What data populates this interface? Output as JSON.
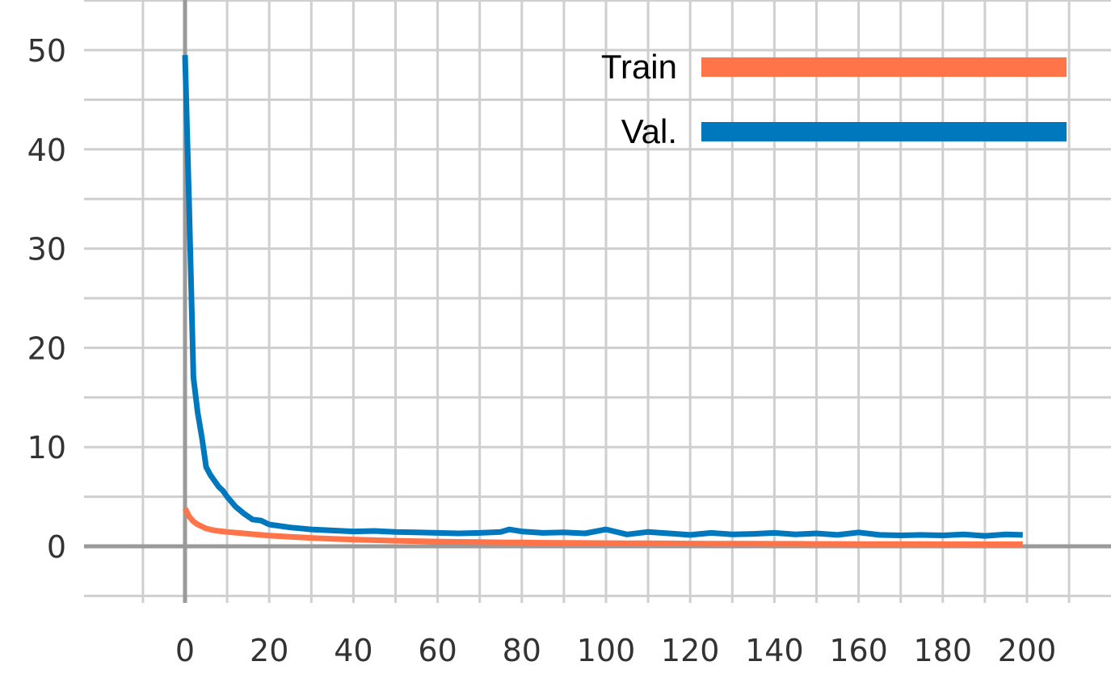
{
  "chart_data": {
    "type": "line",
    "xlim": [
      -20,
      220
    ],
    "ylim": [
      -5,
      55
    ],
    "x_ticks": [
      0,
      20,
      40,
      60,
      80,
      100,
      120,
      140,
      160,
      180,
      200
    ],
    "y_ticks": [
      0,
      10,
      20,
      30,
      40,
      50
    ],
    "x_tick_labels": [
      "0",
      "20",
      "40",
      "60",
      "80",
      "100",
      "120",
      "140",
      "160",
      "180",
      "200"
    ],
    "y_tick_labels": [
      "0",
      "10",
      "20",
      "30",
      "40",
      "50"
    ],
    "grid": true,
    "legend_position": "top-right",
    "x": [
      0,
      1,
      2,
      3,
      4,
      5,
      6,
      7,
      8,
      9,
      10,
      12,
      14,
      16,
      18,
      20,
      25,
      30,
      35,
      40,
      45,
      50,
      55,
      60,
      65,
      70,
      75,
      77,
      80,
      85,
      90,
      95,
      100,
      105,
      110,
      115,
      120,
      125,
      130,
      135,
      140,
      145,
      150,
      155,
      160,
      165,
      170,
      175,
      180,
      185,
      190,
      195,
      199
    ],
    "series": [
      {
        "name": "Train",
        "color": "#FF7448",
        "values": [
          3.8,
          3.0,
          2.5,
          2.2,
          2.0,
          1.8,
          1.7,
          1.6,
          1.55,
          1.5,
          1.45,
          1.38,
          1.3,
          1.22,
          1.15,
          1.08,
          0.95,
          0.85,
          0.76,
          0.68,
          0.62,
          0.56,
          0.52,
          0.48,
          0.45,
          0.42,
          0.4,
          0.39,
          0.38,
          0.36,
          0.34,
          0.33,
          0.32,
          0.31,
          0.3,
          0.29,
          0.28,
          0.27,
          0.26,
          0.26,
          0.25,
          0.25,
          0.24,
          0.24,
          0.23,
          0.23,
          0.22,
          0.22,
          0.21,
          0.21,
          0.2,
          0.2,
          0.2
        ]
      },
      {
        "name": "Val.",
        "color": "#0078BD",
        "values": [
          49.5,
          34.0,
          17.0,
          13.5,
          11.0,
          8.0,
          7.2,
          6.6,
          6.0,
          5.6,
          5.0,
          4.0,
          3.3,
          2.7,
          2.6,
          2.2,
          1.9,
          1.7,
          1.6,
          1.5,
          1.55,
          1.45,
          1.4,
          1.35,
          1.3,
          1.35,
          1.45,
          1.7,
          1.5,
          1.35,
          1.4,
          1.3,
          1.7,
          1.2,
          1.45,
          1.3,
          1.15,
          1.35,
          1.2,
          1.25,
          1.35,
          1.2,
          1.3,
          1.15,
          1.4,
          1.15,
          1.1,
          1.15,
          1.1,
          1.2,
          1.05,
          1.2,
          1.15
        ]
      }
    ]
  }
}
